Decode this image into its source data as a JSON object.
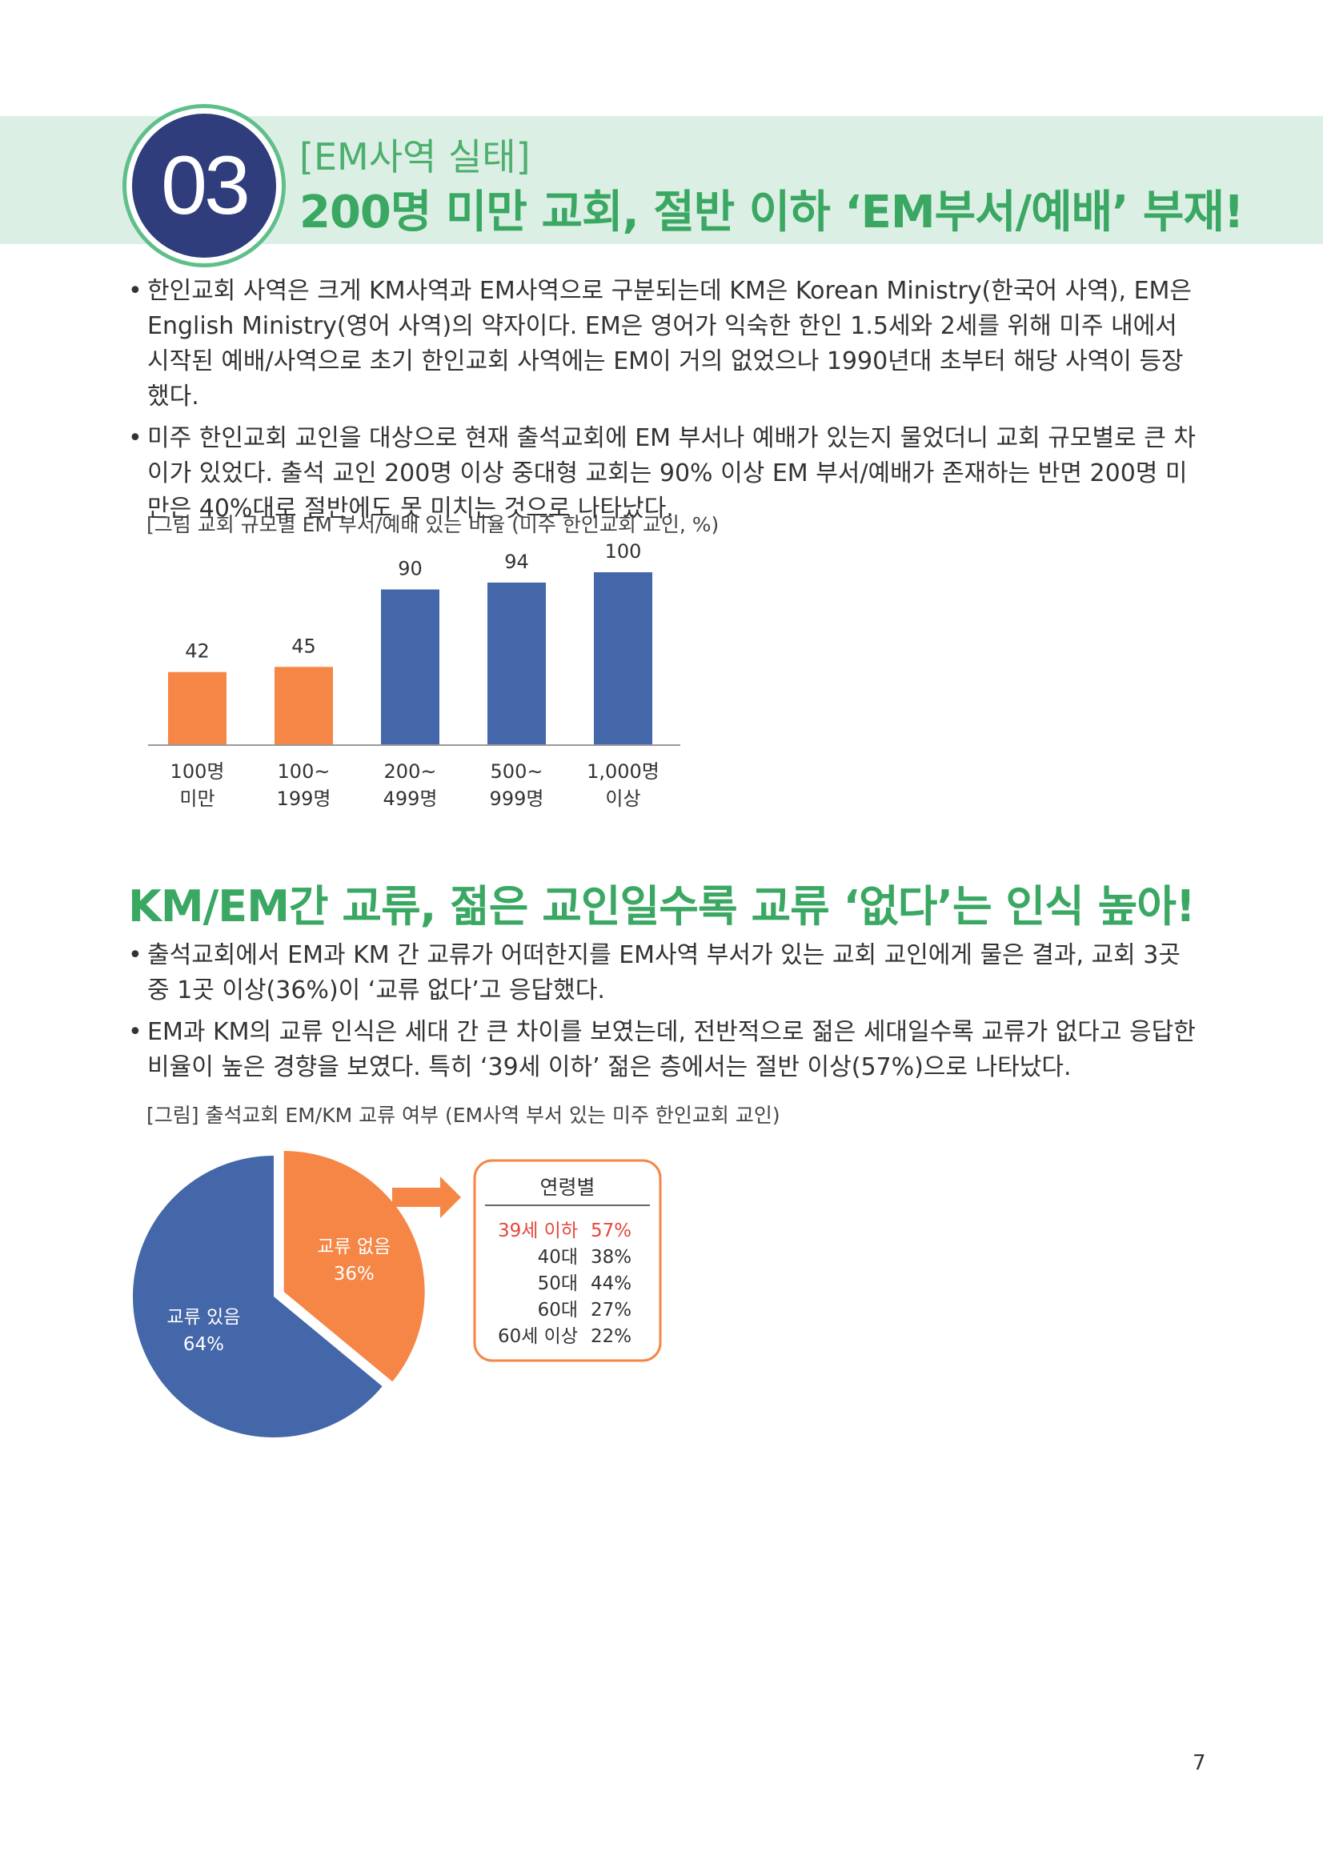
{
  "header": {
    "number": "03",
    "kicker": "[EM사역 실태]",
    "headline": "200명 미만 교회, 절반 이하 ‘EM부서/예배’ 부재!"
  },
  "section1": {
    "bullets": [
      "한인교회 사역은 크게 KM사역과 EM사역으로 구분되는데 KM은 Korean Ministry(한국어 사역), EM은 English Ministry(영어 사역)의 약자이다. EM은 영어가 익숙한 한인 1.5세와 2세를 위해 미주 내에서 시작된 예배/사역으로 초기 한인교회 사역에는 EM이 거의 없었으나 1990년대 초부터 해당 사역이 등장했다.",
      "미주 한인교회 교인을 대상으로 현재 출석교회에 EM 부서나 예배가 있는지 물었더니 교회 규모별로 큰 차이가 있었다. 출석 교인 200명 이상 중대형 교회는 90% 이상 EM 부서/예배가 존재하는 반면 200명 미만은 40%대로 절반에도 못 미치는 것으로 나타났다."
    ],
    "caption": "[그림 교회 규모별 EM 부서/예배 있는 비율 (미주 한인교회 교인, %)"
  },
  "section2": {
    "title": "KM/EM간 교류, 젊은 교인일수록 교류 ‘없다’는 인식 높아!",
    "bullets": [
      "출석교회에서 EM과 KM 간 교류가 어떠한지를 EM사역 부서가 있는 교회 교인에게 물은 결과, 교회 3곳 중 1곳 이상(36%)이 ‘교류 없다’고 응답했다.",
      "EM과 KM의 교류 인식은 세대 간 큰 차이를 보였는데, 전반적으로 젊은 세대일수록 교류가 없다고 응답한 비율이 높은 경향을 보였다. 특히 ‘39세 이하’ 젊은 층에서는 절반 이상(57%)으로 나타났다."
    ],
    "caption": "[그림] 출석교회 EM/KM 교류 여부 (EM사역 부서 있는 미주 한인교회 교인)"
  },
  "colors": {
    "orange": "#f58646",
    "blue": "#4467a9",
    "green": "#3aa863",
    "highlight": "#e4483a"
  },
  "chart_data": [
    {
      "type": "bar",
      "categories": [
        [
          "100명",
          "미만"
        ],
        [
          "100~",
          "199명"
        ],
        [
          "200~",
          "499명"
        ],
        [
          "500~",
          "999명"
        ],
        [
          "1,000명",
          "이상"
        ]
      ],
      "values": [
        42,
        45,
        90,
        94,
        100
      ],
      "value_labels": [
        "42",
        "45",
        "90",
        "94",
        "100"
      ],
      "colors": [
        "#f58646",
        "#f58646",
        "#4467a9",
        "#4467a9",
        "#4467a9"
      ],
      "ylim": [
        0,
        100
      ],
      "grid": false
    },
    {
      "type": "pie",
      "slices": [
        {
          "label": "교류 없음",
          "value": 36,
          "value_label": "36%",
          "color": "#f58646"
        },
        {
          "label": "교류 있음",
          "value": 64,
          "value_label": "64%",
          "color": "#4467a9"
        }
      ],
      "age_box": {
        "title": "연령별",
        "rows": [
          {
            "age": "39세 이하",
            "value": "57%",
            "highlight": true
          },
          {
            "age": "40대",
            "value": "38%",
            "highlight": false
          },
          {
            "age": "50대",
            "value": "44%",
            "highlight": false
          },
          {
            "age": "60대",
            "value": "27%",
            "highlight": false
          },
          {
            "age": "60세 이상",
            "value": "22%",
            "highlight": false
          }
        ]
      }
    }
  ],
  "page_number": "7"
}
